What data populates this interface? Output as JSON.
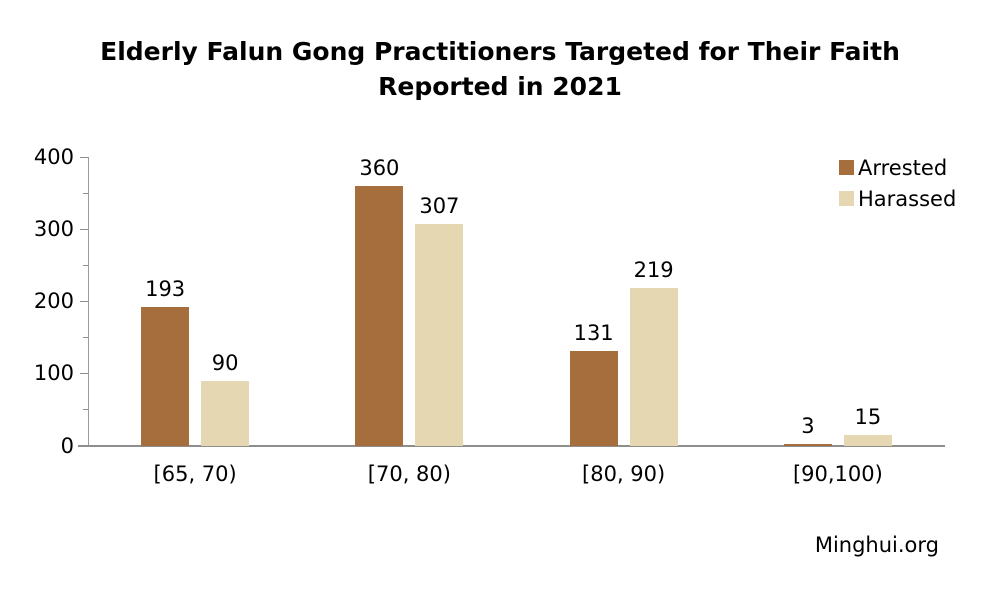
{
  "chart_data": {
    "type": "bar",
    "title": "Elderly Falun Gong Practitioners Targeted for Their Faith Reported in 2021",
    "categories": [
      "[65, 70)",
      "[70, 80)",
      "[80, 90)",
      "[90,100)"
    ],
    "series": [
      {
        "name": "Arrested",
        "color": "#A66E3C",
        "values": [
          193,
          360,
          131,
          3
        ]
      },
      {
        "name": "Harassed",
        "color": "#E4D7B2",
        "values": [
          90,
          307,
          219,
          15
        ]
      }
    ],
    "xlabel": "",
    "ylabel": "",
    "ylim": [
      0,
      400
    ],
    "yticks": [
      0,
      100,
      200,
      300,
      400
    ],
    "minor_ytick_step": 50,
    "grid": false,
    "legend_position": "top-right",
    "data_labels": true,
    "axis_color": "#8e8e8e",
    "text_color": "#000000",
    "background": "#ffffff"
  },
  "source": {
    "label": "Minghui.org"
  }
}
